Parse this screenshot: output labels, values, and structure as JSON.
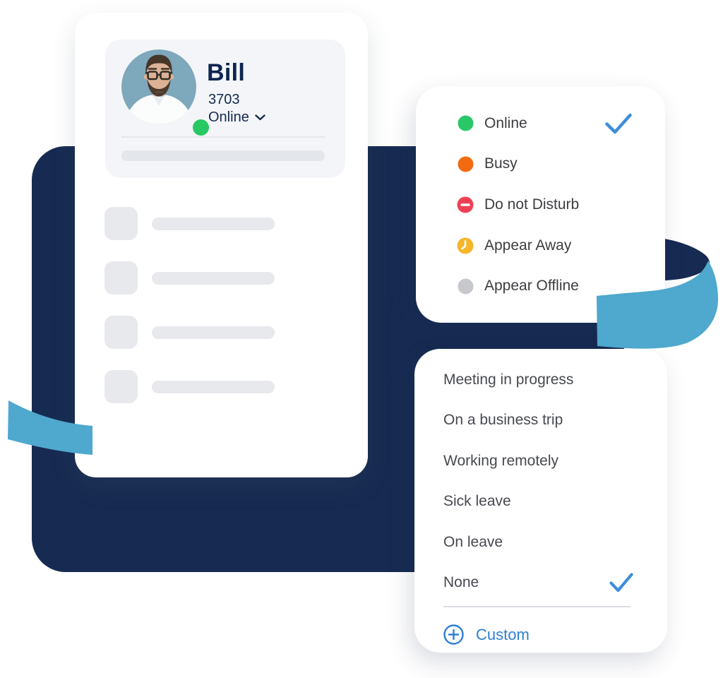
{
  "profile_card": {
    "name": "Bill",
    "extension": "3703",
    "status_label": "Online",
    "skeleton_rows": 4
  },
  "status_menu": {
    "items": [
      {
        "label": "Online",
        "icon": "dot",
        "color": "#2AC769",
        "selected": true
      },
      {
        "label": "Busy",
        "icon": "dot",
        "color": "#F26B11",
        "selected": false
      },
      {
        "label": "Do not Disturb",
        "icon": "minus-circle",
        "color": "#EF4155",
        "selected": false
      },
      {
        "label": "Appear Away",
        "icon": "clock-circle",
        "color": "#F5B62B",
        "selected": false
      },
      {
        "label": "Appear Offline",
        "icon": "dot",
        "color": "#C6C8CB",
        "selected": false
      }
    ]
  },
  "custom_status_menu": {
    "items": [
      {
        "label": "Meeting in progress",
        "selected": false
      },
      {
        "label": "On a business trip",
        "selected": false
      },
      {
        "label": "Working remotely",
        "selected": false
      },
      {
        "label": "Sick leave",
        "selected": false
      },
      {
        "label": "On leave",
        "selected": false
      },
      {
        "label": "None",
        "selected": true
      }
    ],
    "custom_action_label": "Custom"
  },
  "colors": {
    "navy": "#172B52",
    "ribbon": "#4FA8CE",
    "check": "#3E8ED9",
    "accent_blue": "#2E7FD2",
    "presence_green": "#28C863",
    "list_text": "#3C3D40",
    "custom_text": "#474950",
    "name_navy": "#0D2550",
    "profile_text": "#16294E"
  }
}
